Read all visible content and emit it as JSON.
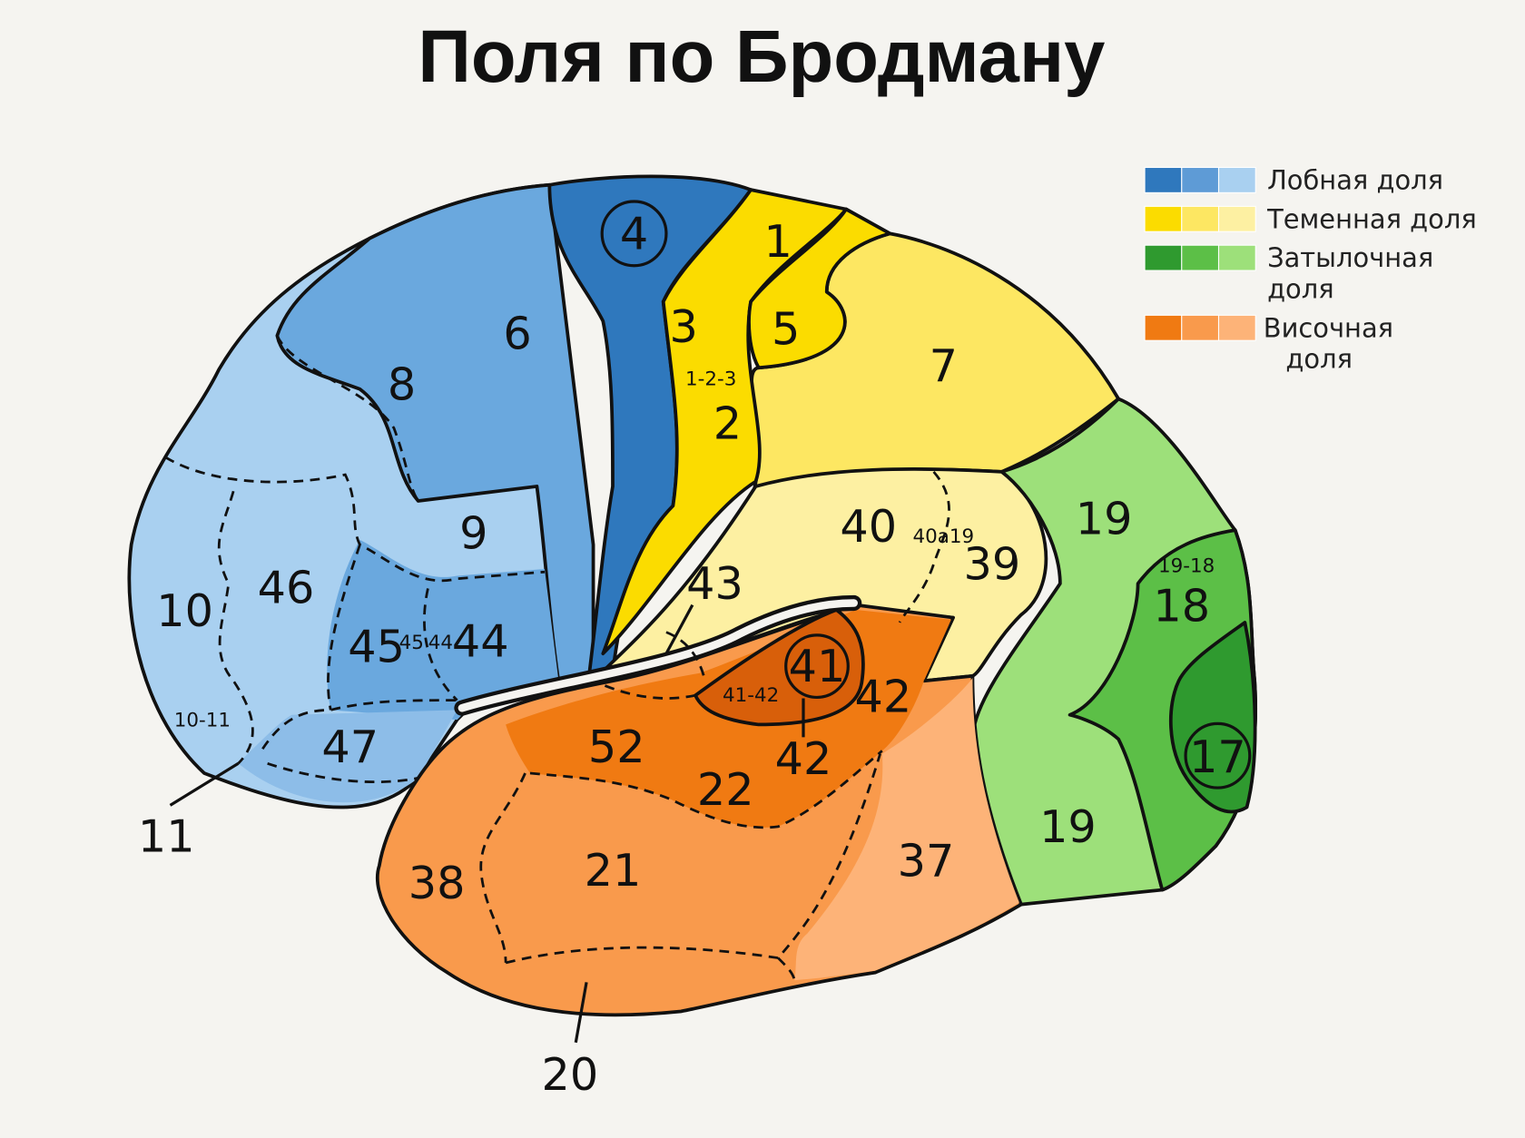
{
  "title": "Поля по Бродману",
  "legend": [
    {
      "lines": [
        "Лобная доля"
      ]
    },
    {
      "lines": [
        "Теменная доля"
      ]
    },
    {
      "lines": [
        "Затылочная",
        "доля"
      ]
    },
    {
      "lines": [
        "Височная",
        "доля"
      ]
    }
  ],
  "labels": [
    "4",
    "1",
    "3",
    "5",
    "6",
    "8",
    "7",
    "1-2-3",
    "2",
    "9",
    "40",
    "40a19",
    "39",
    "19",
    "19-18",
    "18",
    "10",
    "46",
    "43",
    "45",
    "45",
    "44",
    "44",
    "41",
    "42",
    "41-42",
    "10-11",
    "47",
    "52",
    "22",
    "42",
    "11",
    "17",
    "38",
    "21",
    "37",
    "19",
    "20"
  ]
}
